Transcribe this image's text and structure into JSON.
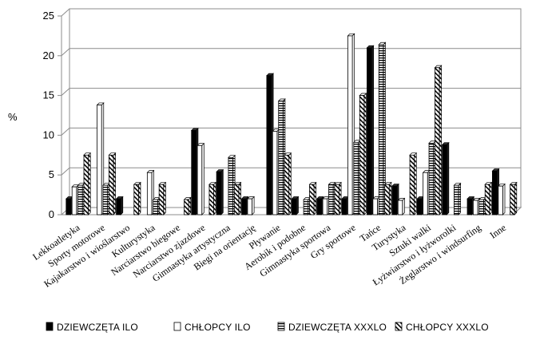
{
  "chart_data": {
    "type": "bar",
    "ylabel": "%",
    "ylim": [
      0,
      25
    ],
    "yticks": [
      "0",
      "5",
      "10",
      "15",
      "20",
      "25"
    ],
    "grid": true,
    "legend_position": "bottom",
    "categories": [
      "Lekkoatletyka",
      "Sporty motorowe",
      "Kajakarstwo i wioślarstwo",
      "Kulturystyka",
      "Narciarstwo biegowe",
      "Narciarstwo zjazdowe",
      "Gimnastyka artystyczna",
      "Biegi na orientację",
      "Pływanie",
      "Aerobik i podobne",
      "Gimnastyka sportowa",
      "Gry sportowe",
      "Tańce",
      "Turystyka",
      "Sztuki walki",
      "Łyżwiarstwo i łyżworolki",
      "Żeglarstwo i windsurfing",
      "Inne"
    ],
    "series": [
      {
        "name": "DZIEWCZĘTA ILO",
        "pattern": "solid-black",
        "values": [
          2,
          0,
          2,
          0,
          0,
          10.6,
          5.4,
          2,
          17.5,
          2,
          2,
          2,
          21,
          3.6,
          2,
          8.8,
          2,
          5.5
        ]
      },
      {
        "name": "CHŁOPCY ILO",
        "pattern": "white",
        "values": [
          3.5,
          13.8,
          0,
          5.3,
          0,
          8.7,
          0,
          2,
          10.5,
          0,
          2,
          22.5,
          2,
          1.8,
          5.3,
          0,
          1.8,
          3.6
        ]
      },
      {
        "name": "DZIEWCZĘTA XXXLO",
        "pattern": "horizontal-lines",
        "values": [
          3.7,
          3.7,
          0,
          1.9,
          0,
          0,
          7.2,
          0,
          14.3,
          1.9,
          3.8,
          9.1,
          21.4,
          0,
          9,
          3.7,
          1.9,
          0
        ]
      },
      {
        "name": "CHŁOPCY XXXLO",
        "pattern": "diagonal-lines",
        "values": [
          7.5,
          7.5,
          3.8,
          3.8,
          1.9,
          3.8,
          3.8,
          0,
          7.5,
          3.8,
          3.8,
          15,
          3.8,
          7.5,
          18.5,
          0,
          3.8,
          3.8
        ]
      }
    ]
  }
}
